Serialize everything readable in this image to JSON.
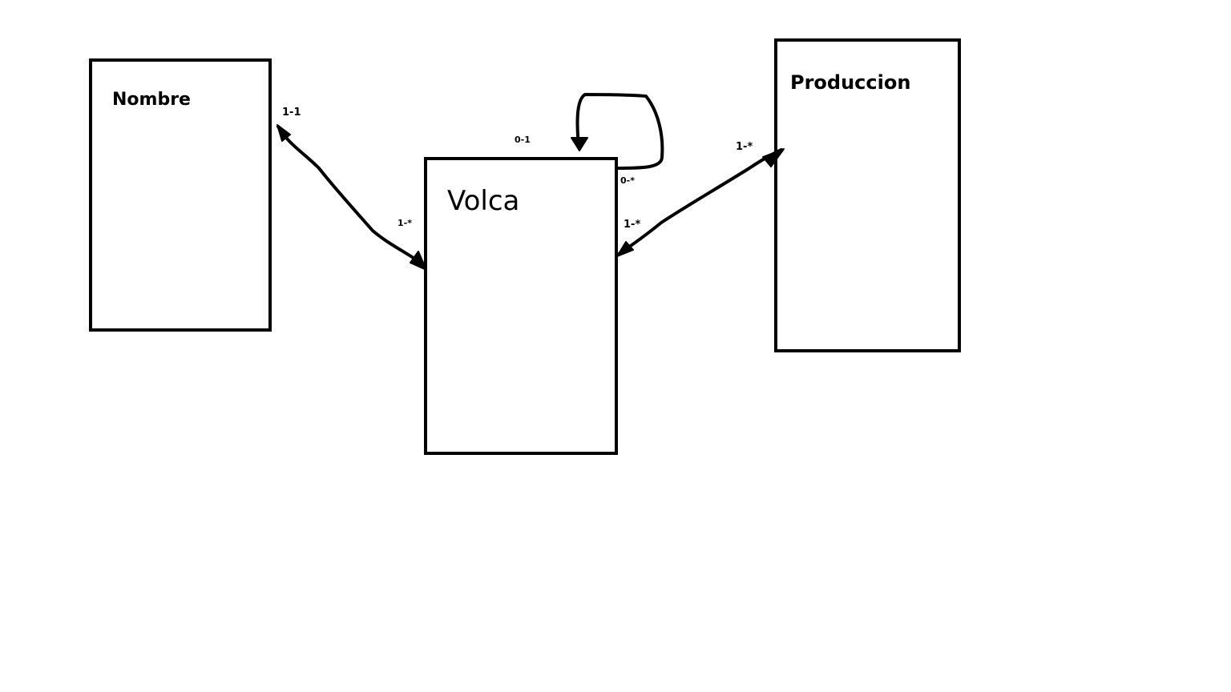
{
  "entities": {
    "nombre": {
      "title": "Nombre"
    },
    "volcan": {
      "title": "Volca"
    },
    "produccion": {
      "title": "Produccion"
    }
  },
  "relationships": {
    "nombre_volcan": {
      "source_card": "1-1",
      "target_card": "1-*"
    },
    "volcan_self": {
      "source_card": "0-1",
      "target_card": "0-*"
    },
    "volcan_produccion": {
      "source_card": "1-*",
      "target_card": "1-*"
    }
  },
  "colors": {
    "stroke": "#000000",
    "background": "#ffffff"
  }
}
